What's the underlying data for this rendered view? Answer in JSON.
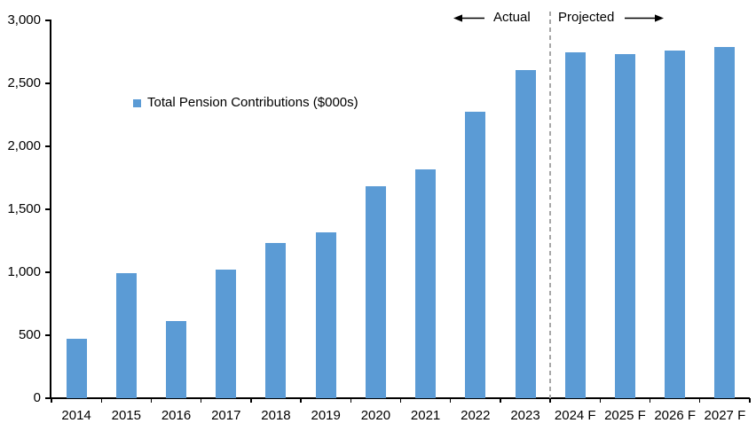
{
  "chart_data": {
    "type": "bar",
    "title": "",
    "legend": "Total Pension Contributions ($000s)",
    "categories": [
      "2014",
      "2015",
      "2016",
      "2017",
      "2018",
      "2019",
      "2020",
      "2021",
      "2022",
      "2023",
      "2024 F",
      "2025 F",
      "2026 F",
      "2027 F"
    ],
    "values": [
      470,
      990,
      610,
      1020,
      1230,
      1315,
      1680,
      1815,
      2275,
      2605,
      2745,
      2730,
      2760,
      2790
    ],
    "ylim": [
      0,
      3000
    ],
    "ytick_interval": 500,
    "ytick_labels": [
      "0",
      "500",
      "1,000",
      "1,500",
      "2,000",
      "2,500",
      "3,000"
    ],
    "annotations": {
      "left_label": "Actual",
      "right_label": "Projected"
    },
    "divider_after": "2023",
    "grid": false,
    "legend_position": "inside-upper-left",
    "colors": {
      "bar": "#5B9BD5",
      "axis": "#000000",
      "text": "#000000",
      "divider": "#A6A6A6"
    }
  }
}
